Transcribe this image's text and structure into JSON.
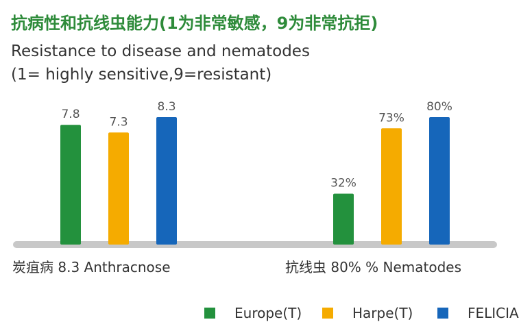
{
  "chart_data": {
    "type": "bar",
    "title": "抗病性和抗线虫能力(1为非常敏感，9为非常抗拒)",
    "subtitle_lines": [
      "Resistance to disease and nematodes",
      "(1= highly sensitive,9=resistant)"
    ],
    "legend_position": "bottom-right",
    "grid": false,
    "colors": {
      "title": "#2e8b3a",
      "baseline": "#c8c8c8",
      "value_label": "#555555",
      "axis_text": "#333333"
    },
    "series": [
      {
        "name": "Europe(T)",
        "color": "#23913d"
      },
      {
        "name": "Harpe(T)",
        "color": "#f5ab00"
      },
      {
        "name": "FELICIA",
        "color": "#1666ba"
      }
    ],
    "groups": [
      {
        "category": "炭疽病 8.3 Anthracnose",
        "ylim": [
          0,
          8.3
        ],
        "values": [
          7.8,
          7.3,
          8.3
        ],
        "labels": [
          "7.8",
          "7.3",
          "8.3"
        ]
      },
      {
        "category": "抗线虫 80% % Nematodes",
        "ylim": [
          0,
          80
        ],
        "values": [
          32,
          73,
          80
        ],
        "labels": [
          "32%",
          "73%",
          "80%"
        ]
      }
    ]
  }
}
